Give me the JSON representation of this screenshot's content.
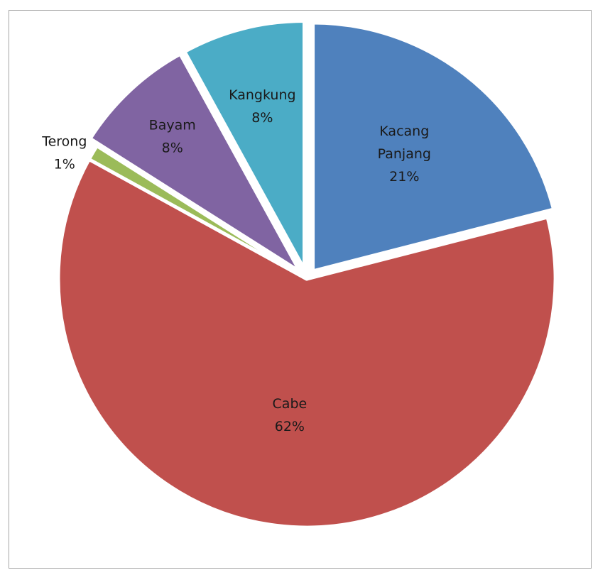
{
  "chart_data": {
    "type": "pie",
    "title": "",
    "slices": [
      {
        "label": "Kacang Panjang",
        "label_lines": [
          "Kacang",
          "Panjang"
        ],
        "value": 21,
        "pct_label": "21%",
        "color": "#4f81bd",
        "exploded": true
      },
      {
        "label": "Cabe",
        "label_lines": [
          "Cabe"
        ],
        "value": 62,
        "pct_label": "62%",
        "color": "#c0504d",
        "exploded": false
      },
      {
        "label": "Terong",
        "label_lines": [
          "Terong"
        ],
        "value": 1,
        "pct_label": "1%",
        "color": "#9bbb59",
        "exploded": false
      },
      {
        "label": "Bayam",
        "label_lines": [
          "Bayam"
        ],
        "value": 8,
        "pct_label": "8%",
        "color": "#8064a2",
        "exploded": true
      },
      {
        "label": "Kangkung",
        "label_lines": [
          "Kangkung"
        ],
        "value": 8,
        "pct_label": "8%",
        "color": "#4bacc6",
        "exploded": true
      }
    ],
    "start_angle": "12 o'clock",
    "direction": "clockwise",
    "legend": "none",
    "data_labels": "category and percentage"
  }
}
